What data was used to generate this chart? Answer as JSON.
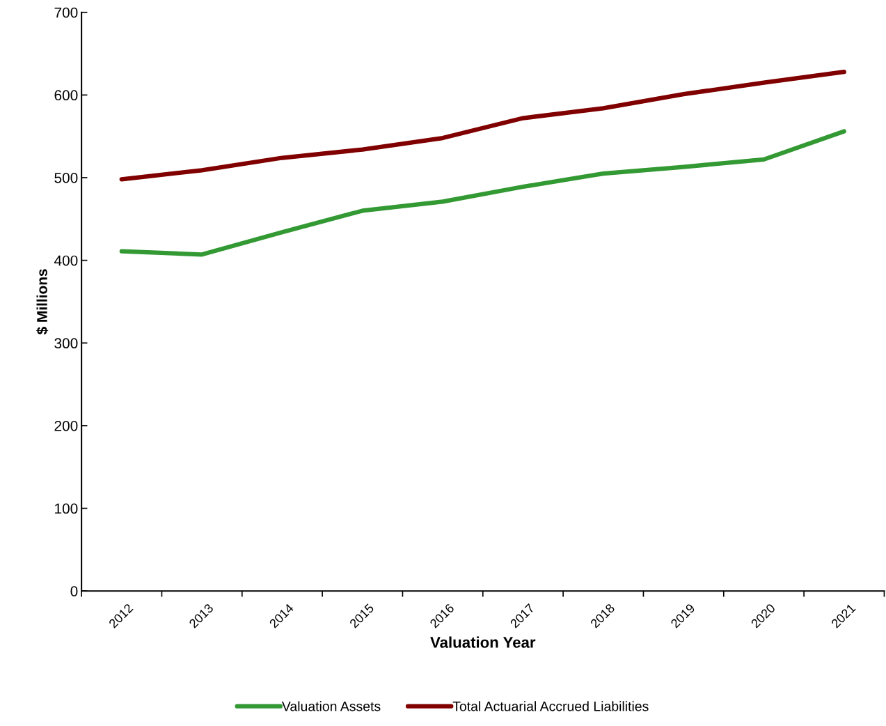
{
  "chart_data": {
    "type": "line",
    "xlabel": "Valuation Year",
    "ylabel": "$ Millions",
    "categories": [
      "2012",
      "2013",
      "2014",
      "2015",
      "2016",
      "2017",
      "2018",
      "2019",
      "2020",
      "2021"
    ],
    "series": [
      {
        "name": "Valuation Assets",
        "color": "#339933",
        "values": [
          411,
          407,
          434,
          460,
          471,
          489,
          505,
          513,
          522,
          556
        ]
      },
      {
        "name": "Total Actuarial Accrued Liabilities",
        "color": "#800000",
        "values": [
          498,
          509,
          524,
          534,
          548,
          572,
          584,
          601,
          615,
          628
        ]
      }
    ],
    "ylim": [
      0,
      700
    ],
    "yticks": [
      0,
      100,
      200,
      300,
      400,
      500,
      600,
      700
    ],
    "grid": false,
    "legend": "bottom",
    "marker": "none",
    "line_style": "solid"
  }
}
